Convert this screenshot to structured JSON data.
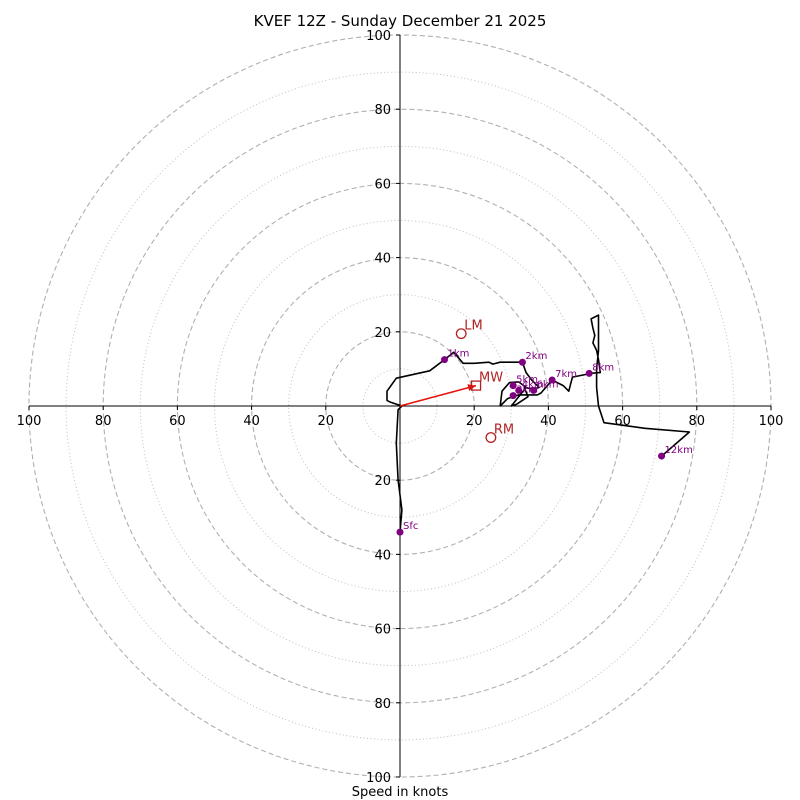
{
  "chart_data": {
    "type": "hodograph",
    "title": "KVEF 12Z - Sunday December 21 2025",
    "xlabel": "Speed in knots",
    "units": "knots",
    "max_speed": 100,
    "ring_major": [
      20,
      40,
      60,
      80,
      100
    ],
    "ring_minor": [
      10,
      30,
      50,
      70,
      90
    ],
    "x_tick_labels": [
      "100",
      "80",
      "60",
      "40",
      "20",
      "20",
      "40",
      "60",
      "80",
      "100"
    ],
    "x_tick_values": [
      -100,
      -80,
      -60,
      -40,
      -20,
      20,
      40,
      60,
      80,
      100
    ],
    "y_tick_labels": [
      "100",
      "80",
      "60",
      "40",
      "20",
      "20",
      "40",
      "60",
      "80",
      "100"
    ],
    "y_tick_values": [
      100,
      80,
      60,
      40,
      20,
      -20,
      -40,
      -60,
      -80,
      -100
    ],
    "colors": {
      "trace": "#000000",
      "height_marker": "#800080",
      "motion": "#b22222",
      "mean_wind_vector": "#e8120c",
      "grid": "#b0b0b0"
    },
    "trace": [
      [
        0,
        -34
      ],
      [
        0.5,
        -28
      ],
      [
        -0.5,
        -20
      ],
      [
        -1,
        -10
      ],
      [
        -0.5,
        -1
      ],
      [
        0.5,
        0
      ],
      [
        -1,
        0.5
      ],
      [
        -2.5,
        1
      ],
      [
        -3.5,
        1.5
      ],
      [
        -3.5,
        4
      ],
      [
        -1,
        7.5
      ],
      [
        8,
        9.5
      ],
      [
        12,
        12.5
      ],
      [
        14.5,
        14.5
      ],
      [
        17,
        11.5
      ],
      [
        20,
        11.5
      ],
      [
        24,
        11.8
      ],
      [
        25,
        11.3
      ],
      [
        27,
        11.8
      ],
      [
        33,
        11.8
      ],
      [
        34,
        9
      ],
      [
        35.5,
        7
      ],
      [
        37.5,
        5
      ],
      [
        36,
        4.5
      ],
      [
        33.5,
        5
      ],
      [
        34.5,
        2.5
      ],
      [
        31.5,
        0.5
      ],
      [
        30,
        0
      ],
      [
        32,
        2.5
      ],
      [
        34,
        5
      ],
      [
        32,
        6.5
      ],
      [
        29.5,
        6.3
      ],
      [
        27.5,
        4
      ],
      [
        27,
        0
      ],
      [
        29,
        2
      ],
      [
        32,
        3
      ],
      [
        37,
        3
      ],
      [
        38,
        3.5
      ],
      [
        41,
        7
      ],
      [
        44,
        5.5
      ],
      [
        45.5,
        4
      ],
      [
        46,
        6
      ],
      [
        46.5,
        7.8
      ],
      [
        50,
        8.5
      ],
      [
        51,
        8.8
      ],
      [
        54,
        9
      ],
      [
        53.5,
        12.5
      ],
      [
        53,
        15
      ],
      [
        52,
        17
      ],
      [
        52.5,
        19
      ],
      [
        52,
        21
      ],
      [
        51.5,
        23.5
      ],
      [
        52.5,
        24
      ],
      [
        53.5,
        24.5
      ],
      [
        53.5,
        20
      ],
      [
        53.5,
        15
      ],
      [
        53,
        10
      ],
      [
        53,
        5
      ],
      [
        53.5,
        0
      ],
      [
        55,
        -4.5
      ],
      [
        66,
        -6
      ],
      [
        78,
        -7
      ],
      [
        70.5,
        -13.5
      ]
    ],
    "height_markers": [
      {
        "label": "Sfc",
        "u": 0,
        "v": -34
      },
      {
        "label": "1km",
        "u": 12,
        "v": 12.5
      },
      {
        "label": "2km",
        "u": 33,
        "v": 11.8
      },
      {
        "label": "3km",
        "u": 30.5,
        "v": 2.8
      },
      {
        "label": "4km",
        "u": 32,
        "v": 4.2
      },
      {
        "label": "5km",
        "u": 30.5,
        "v": 5.5
      },
      {
        "label": "6km",
        "u": 36,
        "v": 4.2
      },
      {
        "label": "7km",
        "u": 41,
        "v": 7
      },
      {
        "label": "8km",
        "u": 51,
        "v": 8.8
      },
      {
        "label": "12km",
        "u": 70.5,
        "v": -13.5
      }
    ],
    "storm_motion": [
      {
        "label": "LM",
        "u": 16.5,
        "v": 19.5,
        "marker": "circle"
      },
      {
        "label": "RM",
        "u": 24.5,
        "v": -8.5,
        "marker": "circle"
      },
      {
        "label": "MW",
        "u": 20.5,
        "v": 5.5,
        "marker": "square"
      }
    ],
    "mean_wind_vector": {
      "u": 20.5,
      "v": 5.5
    }
  }
}
